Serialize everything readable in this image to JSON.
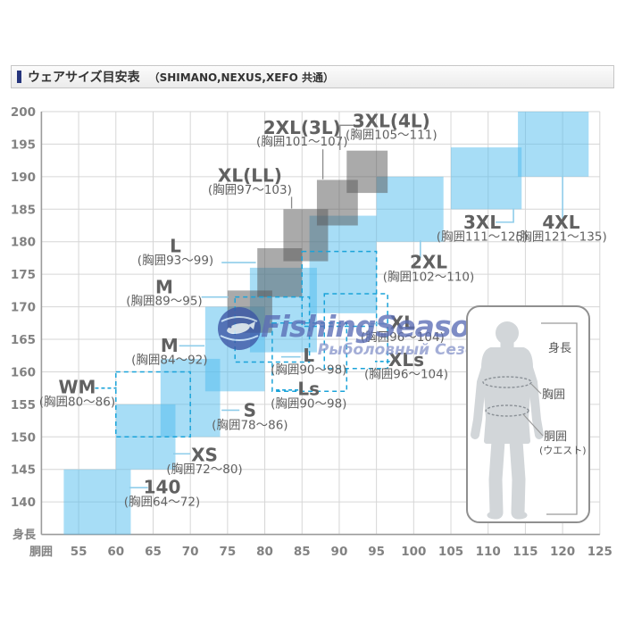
{
  "title": {
    "main": "ウェアサイズ目安表",
    "note": "（SHIMANO,NEXUS,XEFO 共通）"
  },
  "watermark": {
    "brand": "FishingSeason.ru",
    "subtitle": "Рыболовный Сезон"
  },
  "colors": {
    "accent": "#26357d",
    "block_blue": "#4FBBED",
    "block_gray": "#565656",
    "dashed": "#1ba3d9",
    "grid": "#d6d6d6",
    "axis": "#9b9b9b",
    "tick_text": "#828282",
    "label_text": "#616161",
    "conn_blue": "#8fcdea",
    "conn_gray": "#8a8a8a",
    "watermark_main": "#5a6db5",
    "watermark_sub": "#8b98cc",
    "watermark_globe": "#3c55a5",
    "figure_fill": "#d2d6d9",
    "figure_border": "#909090"
  },
  "chart_data": {
    "type": "heatmap",
    "note": "size range blocks: waist girth (x) vs body height (y)",
    "title": "ウェアサイズ目安表（SHIMANO,NEXUS,XEFO 共通）",
    "x_axis": {
      "label": "胴囲",
      "min": 50,
      "max": 125,
      "ticks": [
        55,
        60,
        65,
        70,
        75,
        80,
        85,
        90,
        95,
        100,
        105,
        110,
        115,
        120,
        125
      ]
    },
    "y_axis": {
      "label": "身長",
      "min": 135,
      "max": 200,
      "ticks": [
        140,
        145,
        150,
        155,
        160,
        165,
        170,
        175,
        180,
        185,
        190,
        195,
        200
      ]
    },
    "grid": true,
    "series": [
      {
        "name": "standard",
        "style": "solid-blue",
        "blocks": [
          {
            "size": "140",
            "chest": "胸囲64～72",
            "waist": [
              53,
              62
            ],
            "height": [
              135,
              145
            ]
          },
          {
            "size": "XS",
            "chest": "胸囲72～80",
            "waist": [
              60,
              68
            ],
            "height": [
              145,
              155
            ]
          },
          {
            "size": "S",
            "chest": "胸囲78～86",
            "waist": [
              66,
              74
            ],
            "height": [
              150,
              162
            ]
          },
          {
            "size": "M",
            "chest": "胸囲84～92",
            "waist": [
              72,
              80
            ],
            "height": [
              157,
              170
            ]
          },
          {
            "size": "L",
            "chest": "胸囲90～98",
            "waist": [
              78,
              87
            ],
            "height": [
              163,
              176
            ]
          },
          {
            "size": "XL",
            "chest": "胸囲96～104",
            "waist": [
              86,
              95
            ],
            "height": [
              169,
              184
            ]
          },
          {
            "size": "2XL",
            "chest": "胸囲102～110",
            "waist": [
              95,
              104
            ],
            "height": [
              180,
              190
            ]
          },
          {
            "size": "3XL",
            "chest": "胸囲111～125",
            "waist": [
              105,
              114.5
            ],
            "height": [
              185,
              194.5
            ]
          },
          {
            "size": "4XL",
            "chest": "胸囲121～135",
            "waist": [
              114,
              123.5
            ],
            "height": [
              190,
              200
            ]
          }
        ]
      },
      {
        "name": "fitted",
        "style": "solid-gray",
        "blocks": [
          {
            "size": "M",
            "chest": "胸囲89～95",
            "waist": [
              75,
              81
            ],
            "height": [
              166,
              172.5
            ]
          },
          {
            "size": "L",
            "chest": "胸囲93～99",
            "waist": [
              79,
              85
            ],
            "height": [
              171.5,
              179
            ]
          },
          {
            "size": "XL(LL)",
            "chest": "胸囲97～103",
            "waist": [
              82.5,
              88.5
            ],
            "height": [
              177,
              185
            ]
          },
          {
            "size": "2XL(3L)",
            "chest": "胸囲101～107",
            "waist": [
              87,
              92.5
            ],
            "height": [
              182.5,
              189.5
            ]
          },
          {
            "size": "3XL(4L)",
            "chest": "胸囲105～111",
            "waist": [
              91,
              96.5
            ],
            "height": [
              187.5,
              194
            ]
          }
        ]
      },
      {
        "name": "variant",
        "style": "dashed-outline",
        "blocks": [
          {
            "size": "WM",
            "chest": "胸囲80～86",
            "waist": [
              60,
              70
            ],
            "height": [
              150,
              160
            ]
          },
          {
            "size": "L",
            "chest": "胸囲90～98",
            "waist": [
              76,
              86
            ],
            "height": [
              161.5,
              171.5
            ]
          },
          {
            "size": "Ls",
            "chest": "胸囲90～98",
            "waist": [
              81,
              91
            ],
            "height": [
              157,
              167.5
            ]
          },
          {
            "size": "XL",
            "chest": "胸囲96～104",
            "waist": [
              85,
              95
            ],
            "height": [
              167,
              178.5
            ]
          },
          {
            "size": "XLs",
            "chest": "胸囲96～104",
            "waist": [
              88,
              96.5
            ],
            "height": [
              160.5,
              172
            ]
          }
        ]
      }
    ],
    "labels": [
      {
        "t": "140",
        "r": "(胸囲64～72)",
        "cx": 66.2,
        "ty": 141.3,
        "ry": 139.4,
        "conn": [
          [
            64.3,
            142.2
          ],
          [
            61.8,
            142.2
          ]
        ],
        "cs": "blue"
      },
      {
        "t": "XS",
        "r": "(胸囲72～80)",
        "cx": 71.9,
        "ty": 146.3,
        "ry": 144.4,
        "conn": [
          [
            70.0,
            147.4
          ],
          [
            67.7,
            147.4
          ]
        ],
        "cs": "blue"
      },
      {
        "t": "S",
        "r": "(胸囲78～86)",
        "cx": 78.0,
        "ty": 153.1,
        "ry": 151.2,
        "conn": [
          [
            76.6,
            154.1
          ],
          [
            74.2,
            154.1
          ]
        ],
        "cs": "blue"
      },
      {
        "t": "WM",
        "r": "(胸囲80～86)",
        "cx": 54.8,
        "ty": 156.7,
        "ry": 154.8,
        "conn": [
          [
            57.2,
            157.5
          ],
          [
            60.1,
            157.5
          ]
        ],
        "cs": "dash"
      },
      {
        "t": "M",
        "r": "(胸囲84～92)",
        "cx": 67.2,
        "ty": 163.1,
        "ry": 161.2,
        "conn": [
          [
            68.5,
            164.0
          ],
          [
            71.9,
            164.0
          ]
        ],
        "cs": "blue"
      },
      {
        "t": "M",
        "r": "(胸囲89～95)",
        "cx": 66.5,
        "ty": 172.1,
        "ry": 170.3,
        "conn": [
          [
            71.5,
            171.5
          ],
          [
            75.1,
            171.5
          ]
        ],
        "cs": "blue"
      },
      {
        "t": "L",
        "r": "(胸囲93～99)",
        "cx": 68.0,
        "ty": 178.4,
        "ry": 176.5,
        "conn": [
          [
            74.2,
            176.8
          ],
          [
            78.8,
            176.8
          ]
        ],
        "cs": "blue"
      },
      {
        "t": "XL(LL)",
        "r": "(胸囲97～103)",
        "cx": 78.0,
        "ty": 189.2,
        "ry": 187.4,
        "conn": [
          [
            83.6,
            186.9
          ],
          [
            83.6,
            185.1
          ]
        ],
        "cs": "gray"
      },
      {
        "t": "2XL(3L)",
        "r": "(胸囲101～107)",
        "cx": 85.0,
        "ty": 196.6,
        "ry": 194.8,
        "conn": [
          [
            87.8,
            194.2
          ],
          [
            87.8,
            189.6
          ]
        ],
        "cs": "gray"
      },
      {
        "t": "3XL(4L)",
        "r": "(胸囲105～111)",
        "cx": 97.0,
        "ty": 197.6,
        "ry": 195.8,
        "conn": [
          [
            92.8,
            197.9
          ],
          [
            90.1,
            197.9
          ],
          [
            90.1,
            194.1
          ]
        ],
        "cs": "gray"
      },
      {
        "t": "L",
        "r": "(胸囲90～98)",
        "cx": 85.9,
        "ty": 161.6,
        "ry": 159.7,
        "conn": [
          [
            84.8,
            162.3
          ],
          [
            82.2,
            162.3
          ]
        ],
        "cs": "blue"
      },
      {
        "t": "Ls",
        "r": "(胸囲90～98)",
        "cx": 85.9,
        "ty": 156.4,
        "ry": 154.5,
        "conn": [
          [
            84.5,
            157.2
          ],
          [
            81.3,
            157.2
          ]
        ],
        "cs": "dash"
      },
      {
        "t": "XL",
        "r": "(胸囲96～104)",
        "cx": 98.5,
        "ty": 166.6,
        "ry": 164.7,
        "conn": [
          [
            96.4,
            167.4
          ],
          [
            94.2,
            167.4
          ]
        ],
        "cs": "blue"
      },
      {
        "t": "XLs",
        "r": "(胸囲96～104)",
        "cx": 99.0,
        "ty": 160.9,
        "ry": 159.0,
        "conn": [
          [
            96.8,
            161.6
          ],
          [
            94.8,
            161.6
          ]
        ],
        "cs": "dash"
      },
      {
        "t": "2XL",
        "r": "(胸囲102～110)",
        "cx": 102.0,
        "ty": 175.9,
        "ry": 174.0,
        "conn": [
          [
            100.9,
            177.5
          ],
          [
            100.9,
            180.2
          ]
        ],
        "cs": "blue"
      },
      {
        "t": "3XL",
        "r": "(胸囲111～125)",
        "cx": 109.2,
        "ty": 182.0,
        "ry": 180.2,
        "conn": [
          [
            111.0,
            183.0
          ],
          [
            113.4,
            183.0
          ],
          [
            113.4,
            185.1
          ]
        ],
        "cs": "blue"
      },
      {
        "t": "4XL",
        "r": "(胸囲121～135)",
        "cx": 119.8,
        "ty": 182.0,
        "ry": 180.2,
        "conn": [
          [
            120.0,
            183.6
          ],
          [
            120.0,
            190.1
          ]
        ],
        "cs": "blue"
      }
    ]
  },
  "figure_panel": {
    "height_label": "身長",
    "chest_label": "胸囲",
    "waist_label": "胴囲",
    "waist_sub": "(ウエスト)"
  }
}
